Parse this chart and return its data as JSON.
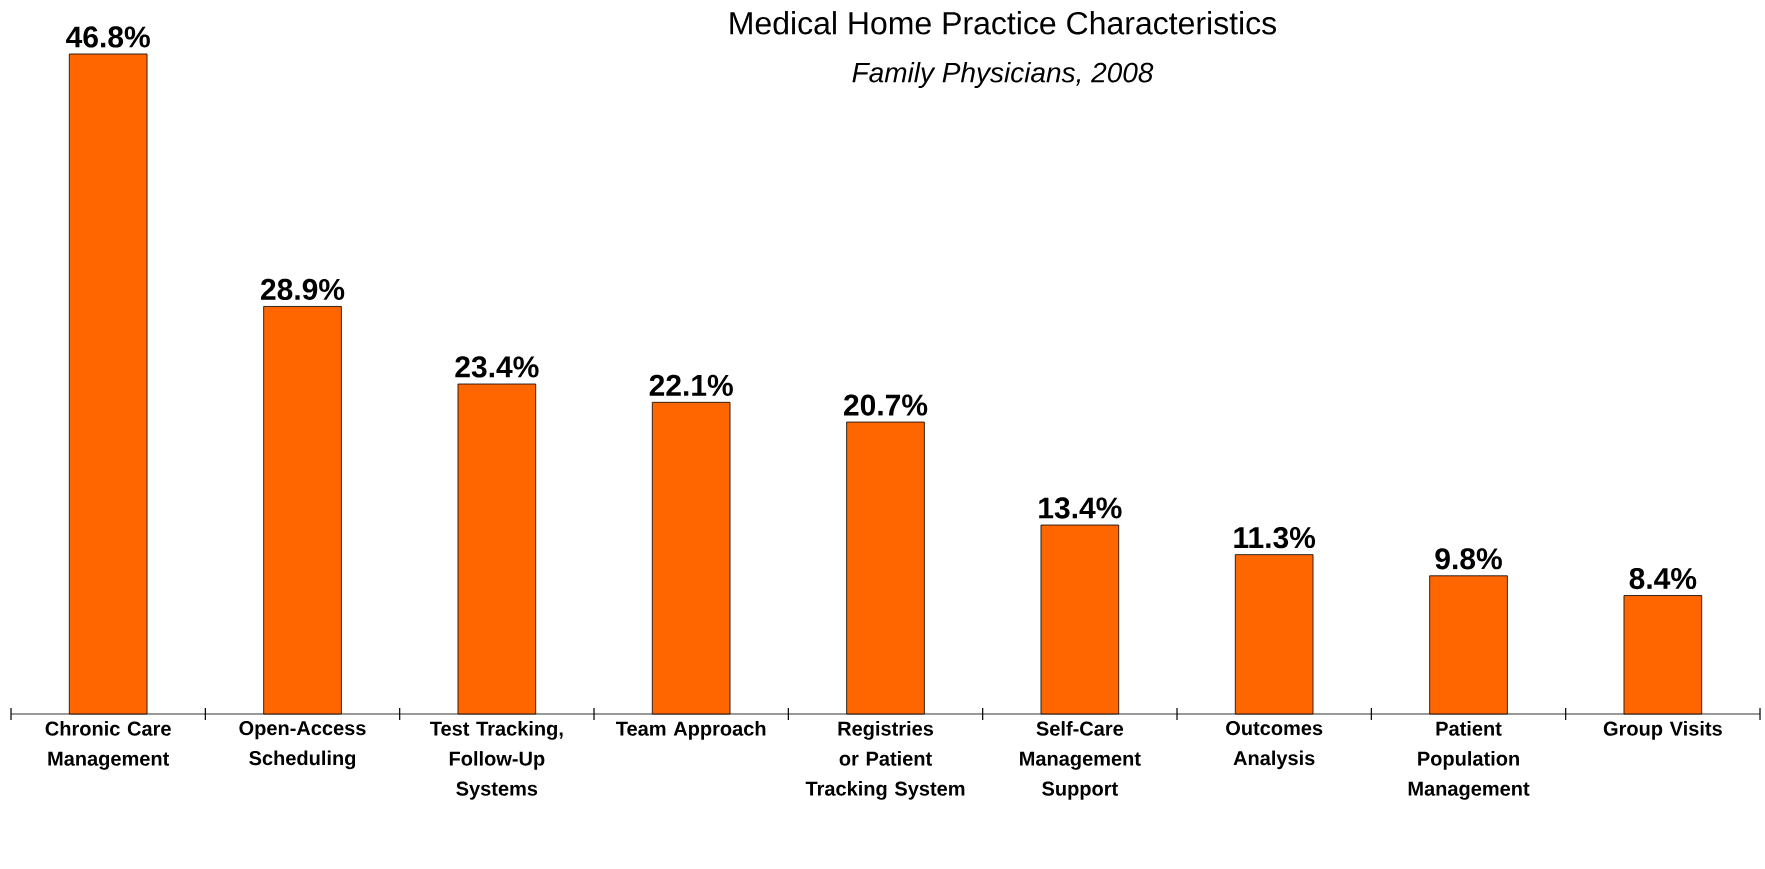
{
  "chart_data": {
    "type": "bar",
    "title": "Medical Home Practice Characteristics",
    "subtitle": "Family Physicians, 2008",
    "categories": [
      "Chronic Care Management",
      "Open-Access Scheduling",
      "Test Tracking, Follow-Up Systems",
      "Team Approach",
      "Registries or Patient Tracking System",
      "Self-Care Management Support",
      "Outcomes Analysis",
      "Patient Population Management",
      "Group Visits"
    ],
    "values": [
      46.8,
      28.9,
      23.4,
      22.1,
      20.7,
      13.4,
      11.3,
      9.8,
      8.4
    ],
    "value_labels": [
      "46.8%",
      "28.9%",
      "23.4%",
      "22.1%",
      "20.7%",
      "13.4%",
      "11.3%",
      "9.8%",
      "8.4%"
    ],
    "color": "#ff6600"
  }
}
